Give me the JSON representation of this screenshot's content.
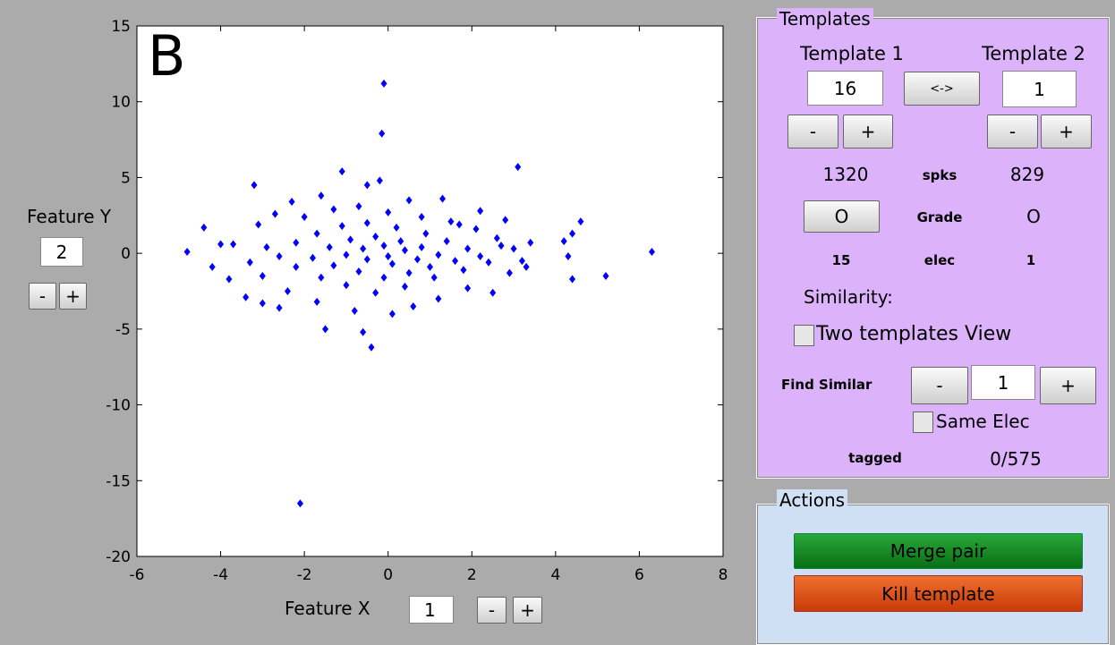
{
  "chart_data": {
    "type": "scatter",
    "annotation": "B",
    "color": "#0000ff",
    "x": [
      -0.1,
      -0.15,
      3.1,
      -2.1,
      6.3,
      5.2,
      4.6,
      4.4,
      4.3,
      4.2,
      4.4,
      -4.8,
      -4.4,
      -4.2,
      -3.8,
      -3.4,
      -0.6,
      -0.4,
      -1.5,
      -0.2,
      -1.1,
      -3.2,
      3.4,
      -4.0,
      -3.7,
      -3.0,
      -2.6,
      -2.3,
      -1.6,
      -0.5,
      0.5,
      1.3,
      2.2,
      2.8,
      3.2,
      2.9,
      2.5,
      1.9,
      1.2,
      0.6,
      0.1,
      -0.8,
      -1.7,
      -2.4,
      -3.0,
      -3.1,
      -2.7,
      -2.0,
      -1.3,
      -0.7,
      0.0,
      0.8,
      1.5,
      2.1,
      2.6,
      3.0,
      2.4,
      1.8,
      1.1,
      0.4,
      -0.3,
      -1.0,
      -1.6,
      -2.2,
      -2.6,
      -2.2,
      -1.7,
      -1.1,
      -0.5,
      0.2,
      0.9,
      1.4,
      1.9,
      2.2,
      1.6,
      1.0,
      0.5,
      -0.1,
      -0.7,
      -1.3,
      -1.8,
      -1.4,
      -0.9,
      -0.3,
      0.3,
      0.8,
      1.2,
      0.7,
      0.1,
      -0.5,
      -1.0,
      -0.6,
      -0.1,
      0.4,
      0.0,
      -2.9,
      -3.3,
      2.7,
      3.3,
      1.7
    ],
    "values": [
      11.2,
      7.9,
      5.7,
      -16.5,
      0.1,
      -1.5,
      2.1,
      -1.7,
      -0.2,
      0.8,
      1.3,
      0.1,
      1.7,
      -0.9,
      -1.7,
      -2.9,
      -5.2,
      -6.2,
      -5.0,
      4.8,
      5.4,
      4.5,
      0.7,
      0.6,
      0.6,
      -3.3,
      -3.6,
      3.4,
      3.8,
      4.5,
      3.5,
      3.6,
      2.8,
      2.2,
      -0.5,
      -1.3,
      -2.6,
      -2.3,
      -3.0,
      -3.5,
      -4.0,
      -3.8,
      -3.2,
      -2.5,
      -1.5,
      1.9,
      2.6,
      2.4,
      2.9,
      3.1,
      2.7,
      2.4,
      2.1,
      1.6,
      1.0,
      0.3,
      -0.6,
      -1.1,
      -1.6,
      -2.2,
      -2.6,
      -2.1,
      -1.6,
      -0.9,
      -0.2,
      0.7,
      1.3,
      1.8,
      2.0,
      1.7,
      1.3,
      0.8,
      0.3,
      -0.2,
      -0.5,
      -0.9,
      -1.3,
      -1.6,
      -1.2,
      -0.8,
      -0.3,
      0.4,
      0.9,
      1.1,
      0.8,
      0.4,
      -0.1,
      -0.4,
      -0.7,
      -0.4,
      -0.1,
      0.3,
      0.5,
      0.2,
      -0.2,
      0.4,
      -0.6,
      0.5,
      -0.9,
      1.9
    ],
    "xlim": [
      -6,
      8
    ],
    "xticks": [
      -6,
      -4,
      -2,
      0,
      2,
      4,
      6,
      8
    ],
    "ylim": [
      -20,
      15
    ],
    "yticks": [
      -20,
      -15,
      -10,
      -5,
      0,
      5,
      10,
      15
    ]
  },
  "feature_y": {
    "label": "Feature Y",
    "value": "2",
    "minus": "-",
    "plus": "+"
  },
  "feature_x": {
    "label": "Feature X",
    "value": "1",
    "minus": "-",
    "plus": "+"
  },
  "templates": {
    "title": "Templates",
    "template1": {
      "label": "Template 1",
      "value": "16",
      "minus": "-",
      "plus": "+"
    },
    "swap": "<->",
    "template2": {
      "label": "Template 2",
      "value": "1",
      "minus": "-",
      "plus": "+"
    },
    "spikes": {
      "t1": "1320",
      "label": "spks",
      "t2": "829"
    },
    "grade": {
      "t1": "O",
      "label": "Grade",
      "t2": "O"
    },
    "elec": {
      "t1": "15",
      "label": "elec",
      "t2": "1"
    },
    "similarity": "Similarity:",
    "two_view": "Two templates View",
    "find_similar": {
      "label": "Find Similar",
      "minus": "-",
      "value": "1",
      "plus": "+"
    },
    "same_elec": "Same Elec",
    "tagged": {
      "label": "tagged",
      "value": "0/575"
    }
  },
  "actions": {
    "title": "Actions",
    "merge": "Merge pair",
    "kill": "Kill template"
  }
}
